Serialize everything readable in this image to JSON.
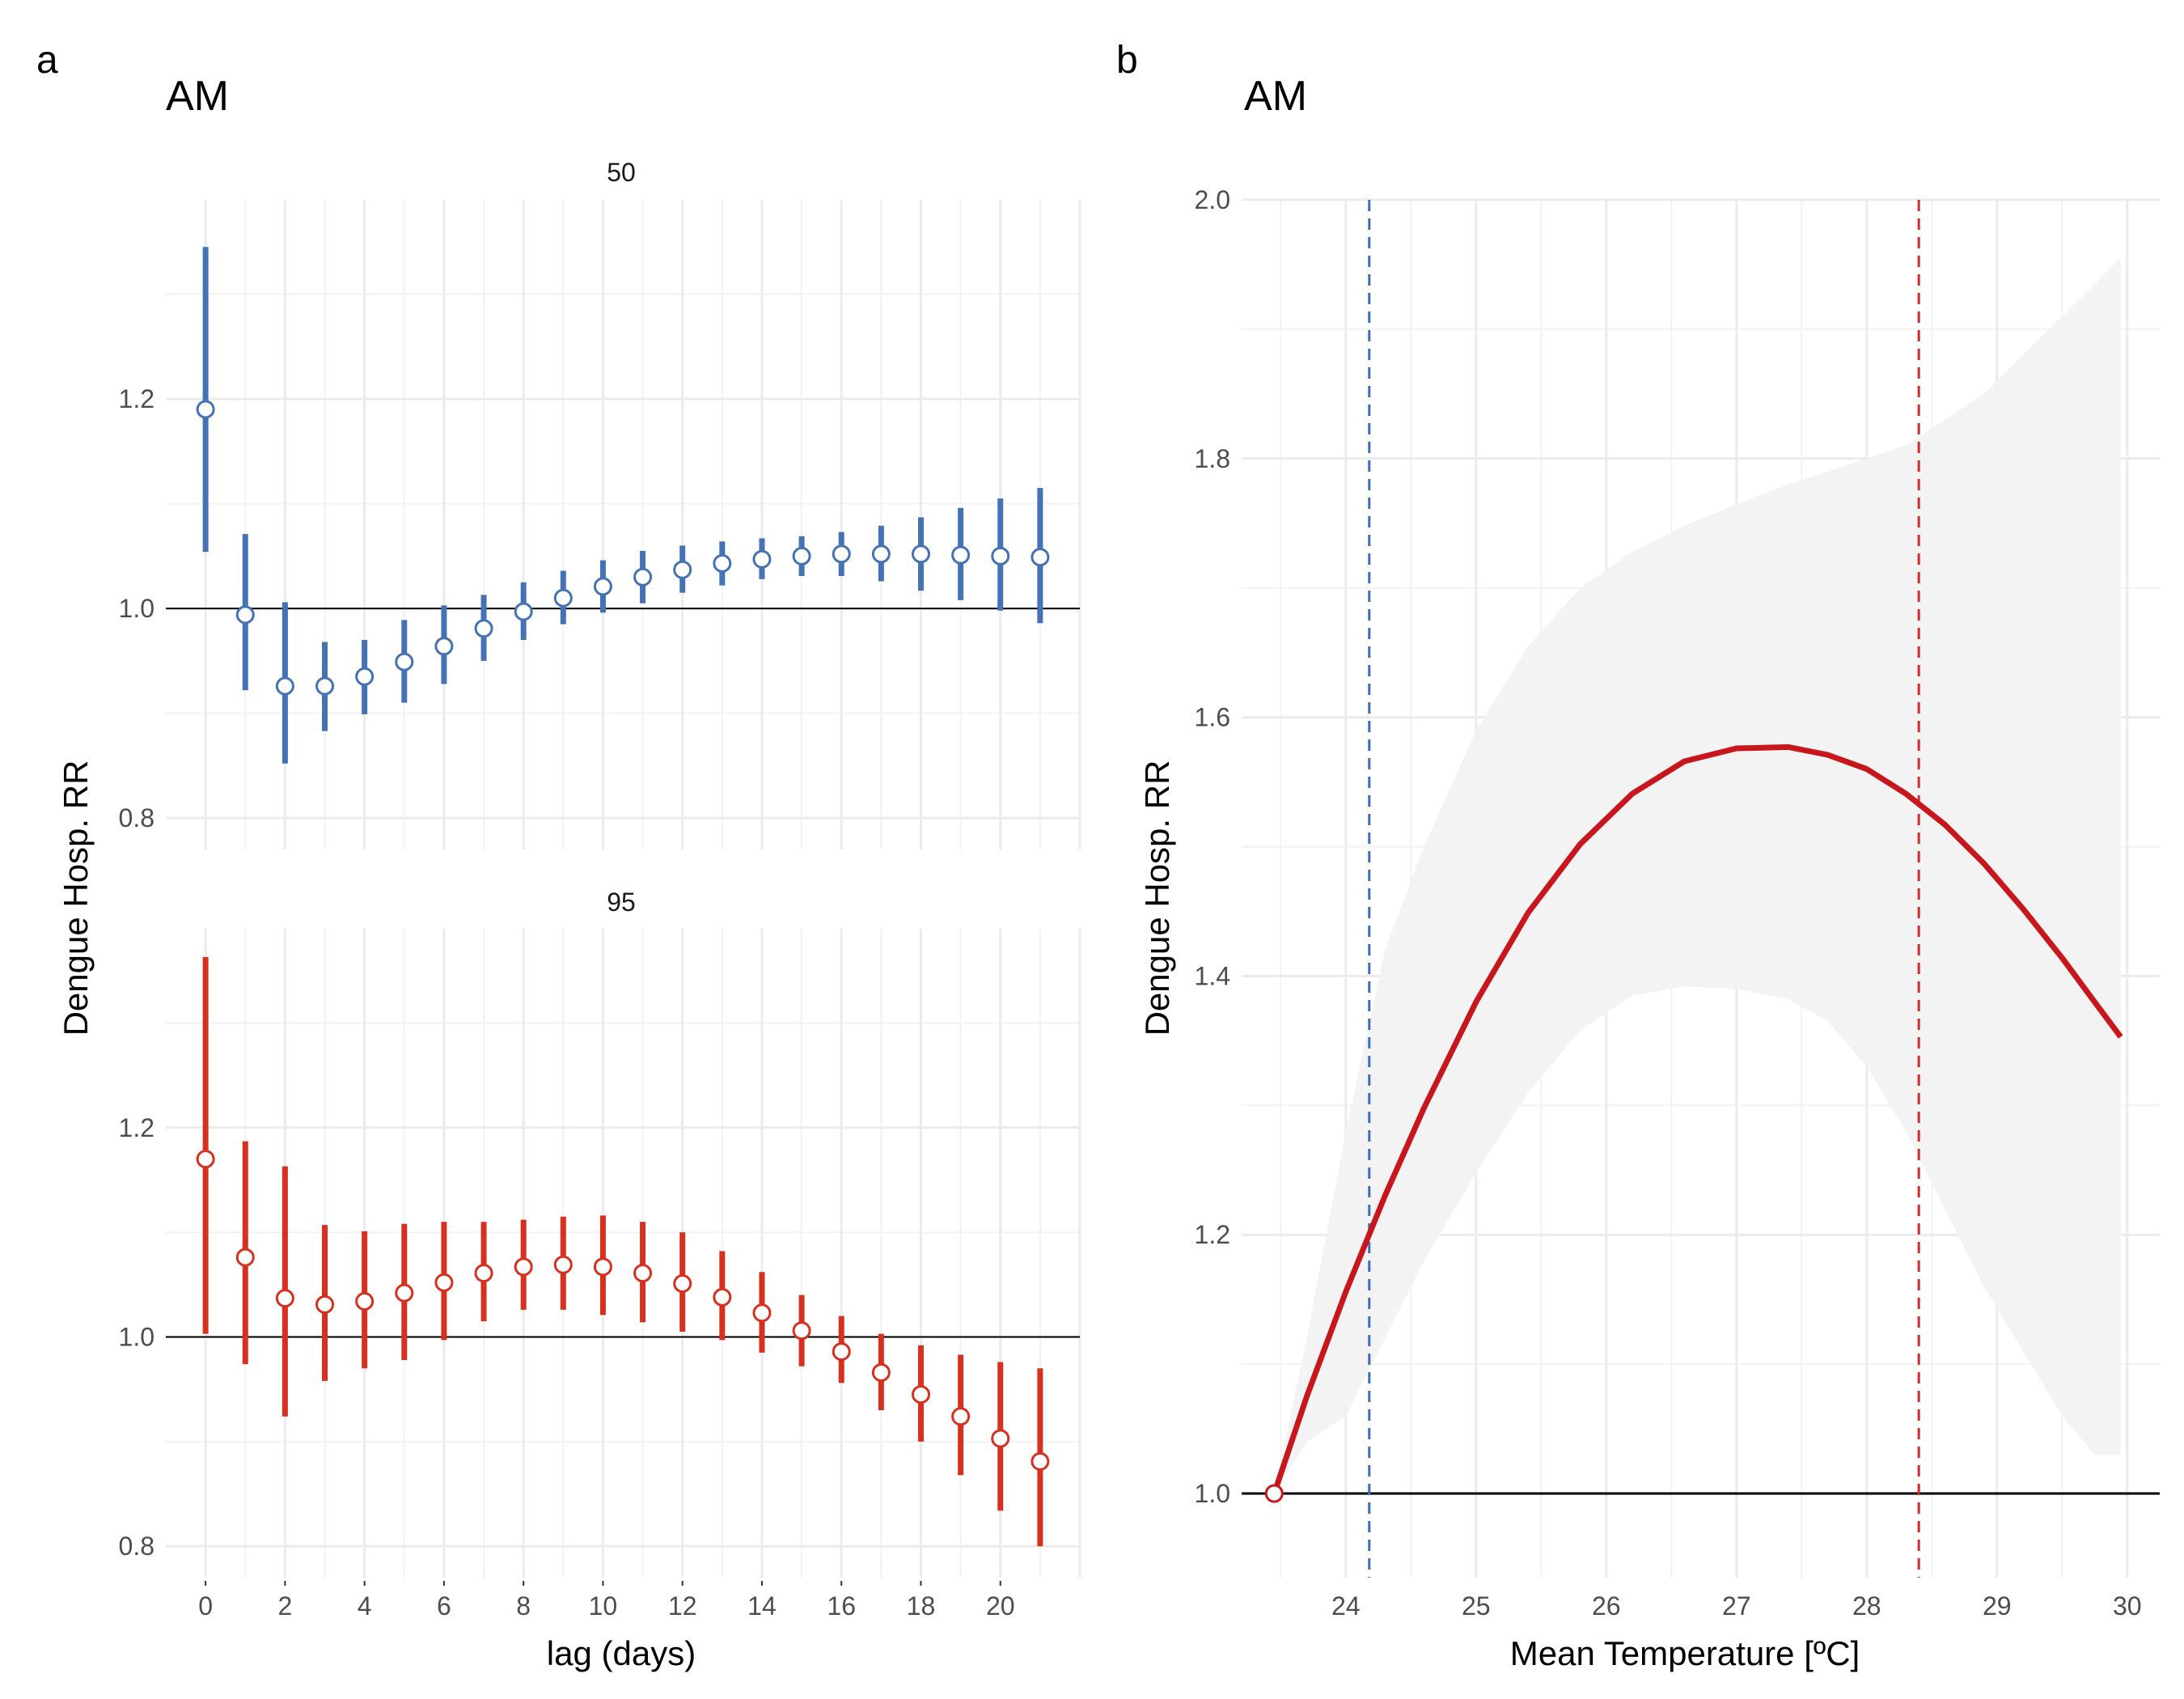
{
  "figure": {
    "panel_a_letter": "a",
    "panel_b_letter": "b"
  },
  "chart_data": [
    {
      "type": "scatter",
      "panel": "a",
      "title": "AM",
      "ylabel": "Dengue Hosp. RR",
      "xlabel": "lag (days)",
      "xlim": [
        -1,
        22
      ],
      "xticks": [
        0,
        2,
        4,
        6,
        8,
        10,
        12,
        14,
        16,
        18,
        20
      ],
      "reference_line": 1.0,
      "grid": true,
      "facets": [
        {
          "label": "50",
          "color": "#4472b4",
          "ylim": [
            0.77,
            1.39
          ],
          "yticks": [
            0.8,
            1.0,
            1.2
          ],
          "x": [
            0,
            1,
            2,
            3,
            4,
            5,
            6,
            7,
            8,
            9,
            10,
            11,
            12,
            13,
            14,
            15,
            16,
            17,
            18,
            19,
            20,
            21
          ],
          "estimate": [
            1.19,
            0.994,
            0.926,
            0.926,
            0.935,
            0.949,
            0.964,
            0.981,
            0.997,
            1.01,
            1.021,
            1.03,
            1.037,
            1.043,
            1.047,
            1.05,
            1.052,
            1.052,
            1.052,
            1.051,
            1.05,
            1.049
          ],
          "lower": [
            1.054,
            0.922,
            0.852,
            0.883,
            0.899,
            0.91,
            0.928,
            0.95,
            0.97,
            0.985,
            0.996,
            1.005,
            1.015,
            1.022,
            1.028,
            1.031,
            1.031,
            1.026,
            1.017,
            1.008,
            0.998,
            0.986
          ],
          "upper": [
            1.345,
            1.071,
            1.006,
            0.968,
            0.97,
            0.989,
            1.003,
            1.013,
            1.025,
            1.036,
            1.046,
            1.055,
            1.06,
            1.064,
            1.067,
            1.069,
            1.073,
            1.079,
            1.087,
            1.096,
            1.105,
            1.115
          ]
        },
        {
          "label": "95",
          "color": "#d7301f",
          "ylim": [
            0.77,
            1.39
          ],
          "yticks": [
            0.8,
            1.0,
            1.2
          ],
          "x": [
            0,
            1,
            2,
            3,
            4,
            5,
            6,
            7,
            8,
            9,
            10,
            11,
            12,
            13,
            14,
            15,
            16,
            17,
            18,
            19,
            20,
            21
          ],
          "estimate": [
            1.17,
            1.076,
            1.037,
            1.031,
            1.034,
            1.042,
            1.052,
            1.061,
            1.067,
            1.069,
            1.067,
            1.061,
            1.051,
            1.038,
            1.023,
            1.006,
            0.986,
            0.966,
            0.945,
            0.924,
            0.903,
            0.881
          ],
          "lower": [
            1.003,
            0.974,
            0.924,
            0.958,
            0.97,
            0.978,
            0.997,
            1.015,
            1.026,
            1.026,
            1.021,
            1.014,
            1.005,
            0.997,
            0.985,
            0.972,
            0.956,
            0.93,
            0.9,
            0.868,
            0.834,
            0.8
          ],
          "upper": [
            1.363,
            1.187,
            1.163,
            1.107,
            1.101,
            1.108,
            1.11,
            1.11,
            1.112,
            1.115,
            1.116,
            1.11,
            1.1,
            1.082,
            1.062,
            1.04,
            1.02,
            1.003,
            0.992,
            0.983,
            0.976,
            0.97
          ]
        }
      ]
    },
    {
      "type": "line",
      "panel": "b",
      "title": "AM",
      "ylabel": "Dengue Hosp. RR",
      "xlabel": "Mean Temperature [ºC]",
      "xlim": [
        23.2,
        30.25
      ],
      "ylim": [
        0.935,
        2.0
      ],
      "xticks": [
        24,
        25,
        26,
        27,
        28,
        29,
        30
      ],
      "yticks": [
        1.0,
        1.2,
        1.4,
        1.6,
        1.8,
        2.0
      ],
      "reference_line": 1.0,
      "grid": true,
      "series": [
        {
          "color": "#c8161d",
          "x": [
            23.45,
            23.7,
            24.0,
            24.3,
            24.6,
            25.0,
            25.4,
            25.8,
            26.2,
            26.6,
            27.0,
            27.4,
            27.7,
            28.0,
            28.3,
            28.6,
            28.9,
            29.2,
            29.5,
            29.75,
            29.95
          ],
          "y": [
            1.0,
            1.075,
            1.156,
            1.23,
            1.298,
            1.38,
            1.449,
            1.502,
            1.541,
            1.566,
            1.576,
            1.577,
            1.571,
            1.56,
            1.541,
            1.517,
            1.487,
            1.452,
            1.414,
            1.38,
            1.353
          ],
          "ci_lower": [
            1.0,
            1.04,
            1.06,
            1.12,
            1.18,
            1.248,
            1.31,
            1.358,
            1.385,
            1.392,
            1.39,
            1.382,
            1.365,
            1.33,
            1.28,
            1.22,
            1.16,
            1.11,
            1.06,
            1.03,
            1.03
          ],
          "ci_upper": [
            1.0,
            1.12,
            1.28,
            1.42,
            1.5,
            1.59,
            1.655,
            1.7,
            1.728,
            1.748,
            1.765,
            1.78,
            1.79,
            1.8,
            1.81,
            1.83,
            1.85,
            1.88,
            1.91,
            1.935,
            1.955
          ]
        }
      ],
      "vlines": [
        {
          "x": 24.18,
          "color": "#3a6eb5",
          "style": "dashed"
        },
        {
          "x": 28.4,
          "color": "#cf2c2c",
          "style": "dashed"
        }
      ]
    }
  ]
}
